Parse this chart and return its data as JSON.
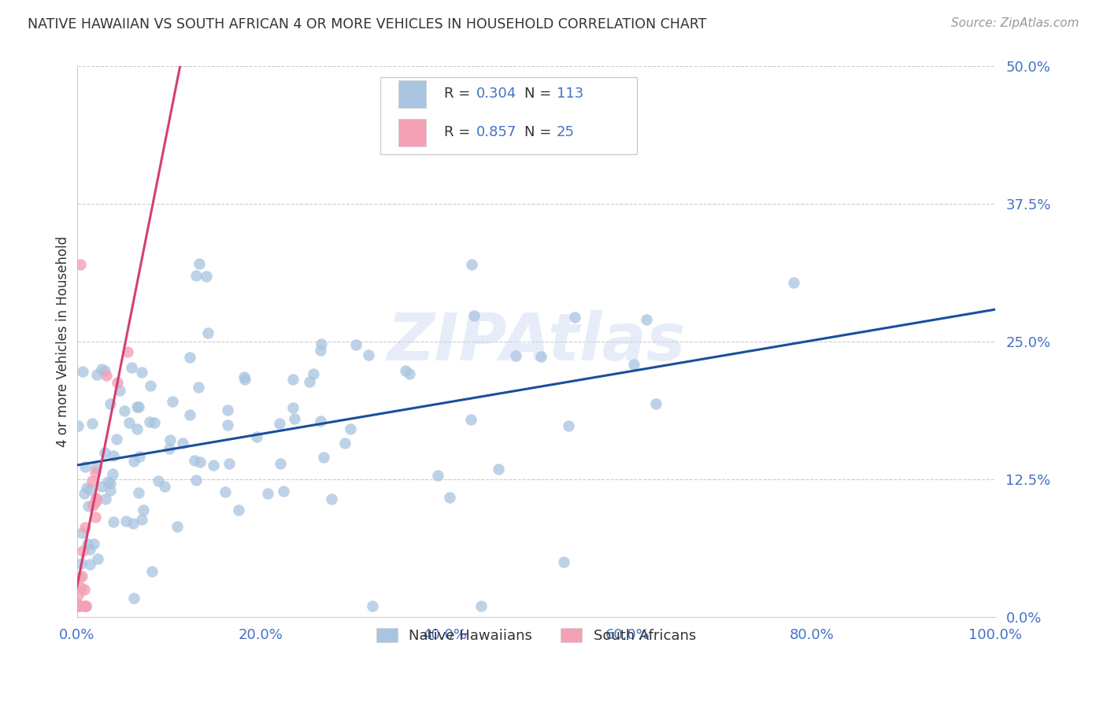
{
  "title": "NATIVE HAWAIIAN VS SOUTH AFRICAN 4 OR MORE VEHICLES IN HOUSEHOLD CORRELATION CHART",
  "source": "Source: ZipAtlas.com",
  "ylabel_label": "4 or more Vehicles in Household",
  "R_hawaiian": 0.304,
  "N_hawaiian": 113,
  "R_african": 0.857,
  "N_african": 25,
  "legend_labels": [
    "Native Hawaiians",
    "South Africans"
  ],
  "color_hawaiian": "#a8c4e0",
  "color_hawaiian_line": "#1a4f9c",
  "color_african": "#f4a0b5",
  "color_african_line": "#d44070",
  "color_text_blue": "#4472c4",
  "color_text_dark": "#333333",
  "background_color": "#ffffff",
  "grid_color": "#cccccc",
  "xlim": [
    0.0,
    1.0
  ],
  "ylim": [
    0.0,
    0.5
  ],
  "xticks": [
    0.0,
    0.2,
    0.4,
    0.6,
    0.8,
    1.0
  ],
  "yticks": [
    0.0,
    0.125,
    0.25,
    0.375,
    0.5
  ],
  "watermark": "ZIPAtlas",
  "seed": 42
}
